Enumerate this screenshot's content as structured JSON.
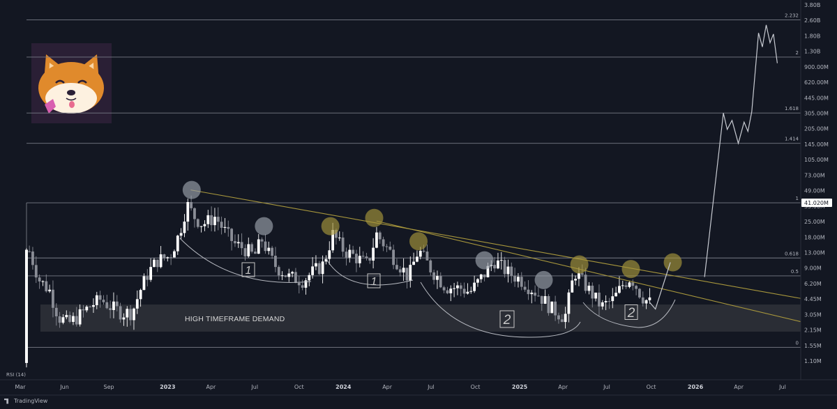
{
  "chart_data": {
    "type": "candlestick",
    "title": "",
    "xlabel": "",
    "ylabel": "",
    "y_scale": "log",
    "price_axis_labels": [
      "3.80B",
      "2.60B",
      "1.80B",
      "1.30B",
      "900.00M",
      "620.00M",
      "445.00M",
      "305.00M",
      "205.00M",
      "145.00M",
      "105.00M",
      "73.00M",
      "49.00M",
      "35.00M",
      "25.00M",
      "18.00M",
      "13.00M",
      "9.00M",
      "6.20M",
      "4.45M",
      "3.05M",
      "2.15M",
      "1.55M",
      "1.10M"
    ],
    "current_price": "41.020M",
    "time_axis_labels": [
      {
        "text": "Mar",
        "bold": false
      },
      {
        "text": "Jun",
        "bold": false
      },
      {
        "text": "Sep",
        "bold": false
      },
      {
        "text": "2023",
        "bold": true
      },
      {
        "text": "Apr",
        "bold": false
      },
      {
        "text": "Jul",
        "bold": false
      },
      {
        "text": "Oct",
        "bold": false
      },
      {
        "text": "2024",
        "bold": true
      },
      {
        "text": "Apr",
        "bold": false
      },
      {
        "text": "Jul",
        "bold": false
      },
      {
        "text": "Oct",
        "bold": false
      },
      {
        "text": "2025",
        "bold": true
      },
      {
        "text": "Apr",
        "bold": false
      },
      {
        "text": "Jul",
        "bold": false
      },
      {
        "text": "Oct",
        "bold": false
      },
      {
        "text": "2026",
        "bold": true
      },
      {
        "text": "Apr",
        "bold": false
      },
      {
        "text": "Jul",
        "bold": false
      }
    ],
    "fib_levels": [
      {
        "label": "2.232",
        "price": 2700000000
      },
      {
        "label": "2",
        "price": 1150000000
      },
      {
        "label": "1.618",
        "price": 320000000
      },
      {
        "label": "1.414",
        "price": 160000000
      },
      {
        "label": "1",
        "price": 41020000
      },
      {
        "label": "0.618",
        "price": 11600000
      },
      {
        "label": "0.5",
        "price": 7700000
      },
      {
        "label": "0",
        "price": 1500000
      }
    ],
    "demand_zone": {
      "label": "HIGH TIMEFRAME DEMAND",
      "top": 4000000,
      "bottom": 2150000
    },
    "wave_counts": [
      "1",
      "1",
      "2",
      "2"
    ],
    "indicator_label": "RSI (14)",
    "projection_path": [
      [
        "2026-01-20",
        7500000
      ],
      [
        "2026-02-28",
        320000000
      ],
      [
        "2026-03-08",
        220000000
      ],
      [
        "2026-03-18",
        270000000
      ],
      [
        "2026-03-31",
        160000000
      ],
      [
        "2026-04-12",
        260000000
      ],
      [
        "2026-04-20",
        210000000
      ],
      [
        "2026-04-28",
        330000000
      ],
      [
        "2026-05-12",
        2000000000
      ],
      [
        "2026-05-20",
        1450000000
      ],
      [
        "2026-05-28",
        2400000000
      ],
      [
        "2026-06-05",
        1600000000
      ],
      [
        "2026-06-12",
        1950000000
      ],
      [
        "2026-06-20",
        1000000000
      ]
    ],
    "colors": {
      "background": "#131722",
      "candle_up": "#ffffff",
      "candle_down": "#8a8d96",
      "trendline": "#a8973c",
      "highlight_grey": "#9da3ad",
      "highlight_gold": "#a8973c",
      "demand_fill": "#2b2e37",
      "fib_line": "#787b86",
      "curve": "#b6b9c0"
    }
  },
  "brand": {
    "name": "TradingView"
  }
}
